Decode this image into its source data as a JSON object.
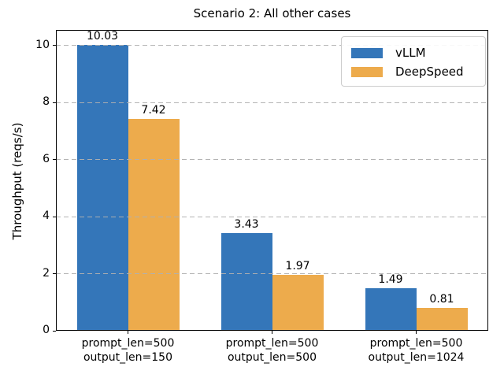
{
  "figure": {
    "background": "#ffffff",
    "axis_color": "#000000",
    "text_color": "#000000"
  },
  "chart_data": {
    "type": "bar",
    "title": "Scenario 2: All other cases",
    "xlabel": "",
    "ylabel": "Throughput (reqs/s)",
    "categories": [
      [
        "prompt_len=500",
        "output_len=150"
      ],
      [
        "prompt_len=500",
        "output_len=500"
      ],
      [
        "prompt_len=500",
        "output_len=1024"
      ]
    ],
    "series": [
      {
        "name": "vLLM",
        "color": "#3476b9",
        "values": [
          10.03,
          3.43,
          1.49
        ]
      },
      {
        "name": "DeepSpeed",
        "color": "#edab4c",
        "values": [
          7.42,
          1.97,
          0.81
        ]
      }
    ],
    "value_label_decimals": 2,
    "yticks": [
      0,
      2,
      4,
      6,
      8,
      10
    ],
    "ylim": [
      0,
      10.55
    ],
    "grid": {
      "axis": "y",
      "style": "dashed",
      "color": "#b0b0b0",
      "above_bars": true
    },
    "legend": {
      "position": "upper right",
      "entries": [
        "vLLM",
        "DeepSpeed"
      ]
    }
  }
}
